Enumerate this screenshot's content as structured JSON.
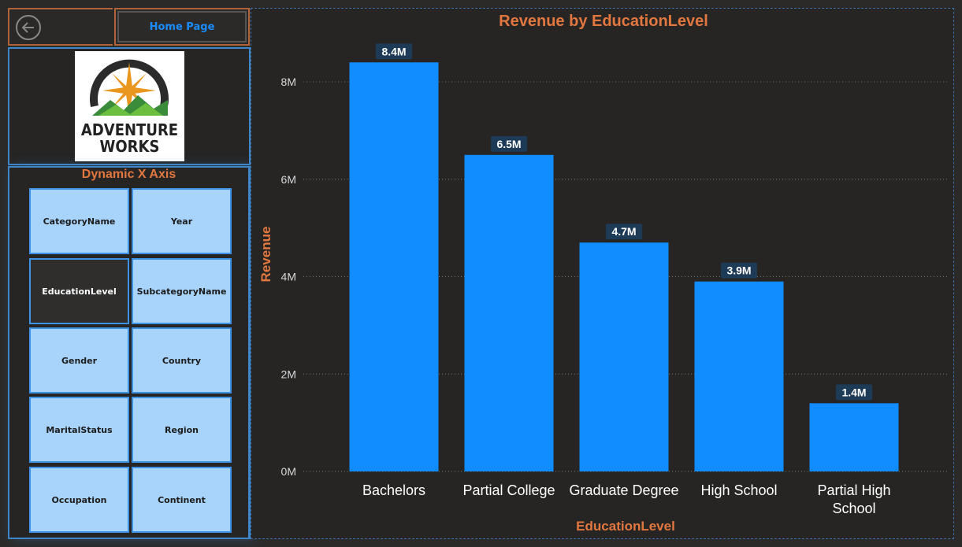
{
  "nav": {
    "home_label": "Home Page"
  },
  "logo": {
    "line1": "ADVENTURE",
    "line2": "WORKS"
  },
  "slicer": {
    "title": "Dynamic X Axis",
    "options": [
      "CategoryName",
      "Year",
      "EducationLevel",
      "SubcategoryName",
      "Gender",
      "Country",
      "MaritalStatus",
      "Region",
      "Occupation",
      "Continent"
    ],
    "selected": "EducationLevel"
  },
  "colors": {
    "bar": "#118dff",
    "accent": "#e2773f",
    "slicer_bg": "#a8d3fb",
    "border": "#3f86c8"
  },
  "chart_data": {
    "type": "bar",
    "title": "Revenue by EducationLevel",
    "xlabel": "EducationLevel",
    "ylabel": "Revenue",
    "categories": [
      "Bachelors",
      "Partial College",
      "Graduate Degree",
      "High School",
      "Partial High School"
    ],
    "values": [
      8.4,
      6.5,
      4.7,
      3.9,
      1.4
    ],
    "data_labels": [
      "8.4M",
      "6.5M",
      "4.7M",
      "3.9M",
      "1.4M"
    ],
    "value_unit": "M",
    "ylim": [
      0,
      8.4
    ],
    "yticks": [
      0,
      2,
      4,
      6,
      8
    ],
    "ytick_labels": [
      "0M",
      "2M",
      "4M",
      "6M",
      "8M"
    ],
    "grid": true
  }
}
